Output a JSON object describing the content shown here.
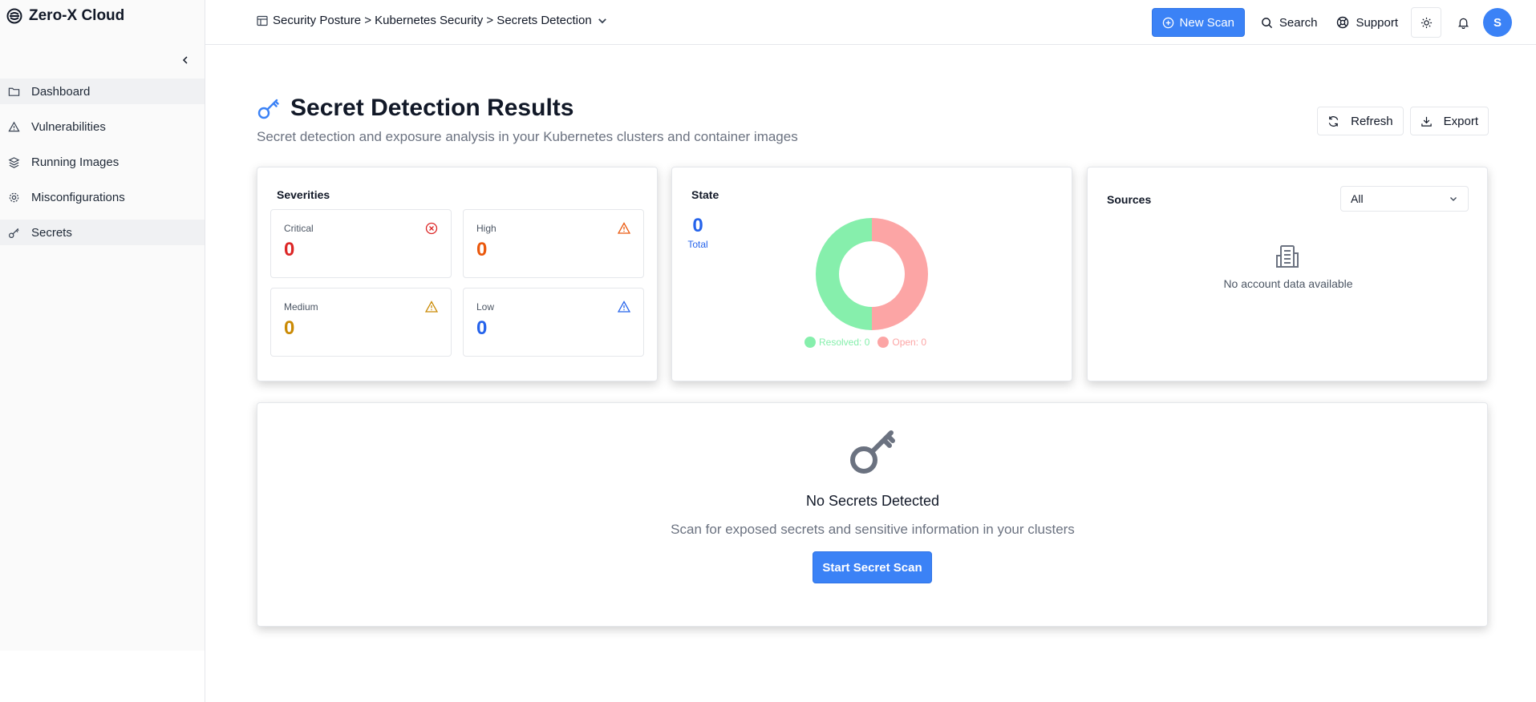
{
  "brand": {
    "name": "Zero-X Cloud"
  },
  "sidebar": {
    "items": [
      {
        "label": "Dashboard",
        "icon": "folder-icon"
      },
      {
        "label": "Vulnerabilities",
        "icon": "warning-icon"
      },
      {
        "label": "Running Images",
        "icon": "layers-icon"
      },
      {
        "label": "Misconfigurations",
        "icon": "gear-icon"
      },
      {
        "label": "Secrets",
        "icon": "key-icon"
      }
    ]
  },
  "header": {
    "breadcrumb": "Security Posture > Kubernetes Security > Secrets Detection",
    "new_scan_label": "New Scan",
    "search_label": "Search",
    "support_label": "Support",
    "avatar_initial": "S"
  },
  "page": {
    "title": "Secret Detection Results",
    "subtitle": "Secret detection and exposure analysis in your Kubernetes clusters and container images",
    "refresh_label": "Refresh",
    "export_label": "Export"
  },
  "severities": {
    "title": "Severities",
    "items": [
      {
        "label": "Critical",
        "value": "0",
        "color": "#dc2626"
      },
      {
        "label": "High",
        "value": "0",
        "color": "#ea580c"
      },
      {
        "label": "Medium",
        "value": "0",
        "color": "#ca8a04"
      },
      {
        "label": "Low",
        "value": "0",
        "color": "#2563eb"
      }
    ]
  },
  "state": {
    "title": "State",
    "total_value": "0",
    "total_label": "Total",
    "resolved_label": "Resolved: 0",
    "open_label": "Open: 0",
    "resolved_color": "#86efac",
    "open_color": "#fca5a5"
  },
  "sources": {
    "title": "Sources",
    "selected": "All",
    "empty_text": "No account data available"
  },
  "empty_state": {
    "title": "No Secrets Detected",
    "description": "Scan for exposed secrets and sensitive information in your clusters",
    "button_label": "Start Secret Scan"
  }
}
